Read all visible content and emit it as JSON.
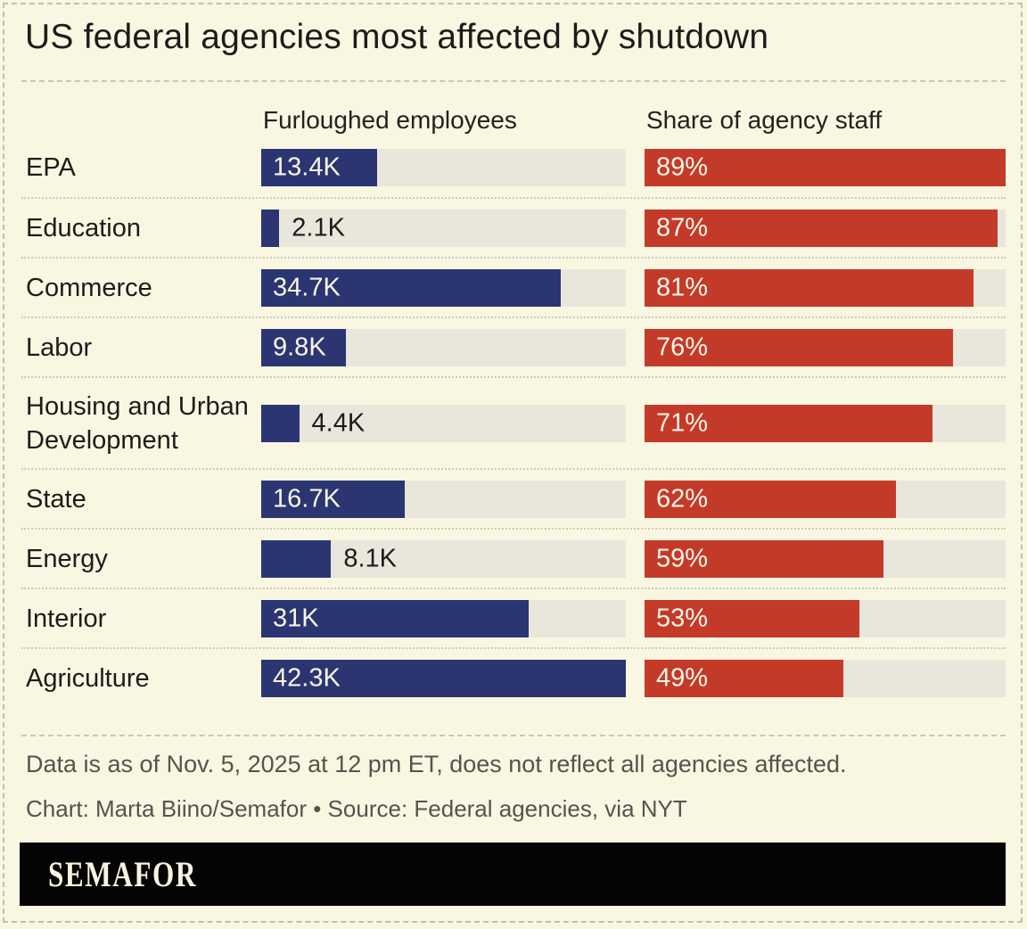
{
  "title": "US federal agencies most affected by shutdown",
  "columns": {
    "left": "Furloughed employees",
    "right": "Share of agency staff"
  },
  "chart_data": {
    "type": "bar",
    "categories": [
      "EPA",
      "Education",
      "Commerce",
      "Labor",
      "Housing and Urban Development",
      "State",
      "Energy",
      "Interior",
      "Agriculture"
    ],
    "category_display_lines": [
      [
        "EPA"
      ],
      [
        "Education"
      ],
      [
        "Commerce"
      ],
      [
        "Labor"
      ],
      [
        "Housing and Urban",
        "Development"
      ],
      [
        "State"
      ],
      [
        "Energy"
      ],
      [
        "Interior"
      ],
      [
        "Agriculture"
      ]
    ],
    "series": [
      {
        "name": "Furloughed employees",
        "values": [
          13400,
          2100,
          34700,
          9800,
          4400,
          16700,
          8100,
          31000,
          42300
        ],
        "labels": [
          "13.4K",
          "2.1K",
          "34.7K",
          "9.8K",
          "4.4K",
          "16.7K",
          "8.1K",
          "31K",
          "42.3K"
        ],
        "label_inside": [
          true,
          false,
          true,
          true,
          false,
          true,
          false,
          true,
          true
        ],
        "axis_max": 42300,
        "color": "#2b3572"
      },
      {
        "name": "Share of agency staff",
        "values": [
          89,
          87,
          81,
          76,
          71,
          62,
          59,
          53,
          49
        ],
        "labels": [
          "89%",
          "87%",
          "81%",
          "76%",
          "71%",
          "62%",
          "59%",
          "53%",
          "49%"
        ],
        "label_inside": [
          true,
          true,
          true,
          true,
          true,
          true,
          true,
          true,
          true
        ],
        "axis_max": 89,
        "color": "#c43a29"
      }
    ],
    "title": "US federal agencies most affected by shutdown",
    "xlabel": "",
    "ylabel": "",
    "legend": false,
    "grid": false
  },
  "footer": {
    "note": "Data is as of Nov. 5, 2025 at 12 pm ET, does not reflect all agencies affected.",
    "credit": "Chart: Marta Biino/Semafor • Source: Federal agencies, via NYT"
  },
  "brand": {
    "logo_text": "SEMAFOR"
  },
  "colors": {
    "background": "#f9f6e2",
    "bar_blue": "#2b3572",
    "bar_red": "#c43a29",
    "bar_track": "#e9e6dc",
    "text": "#1d1c1a",
    "footer_text": "#55544d",
    "brand_bar": "#040404",
    "brand_text": "#f7f3de"
  }
}
